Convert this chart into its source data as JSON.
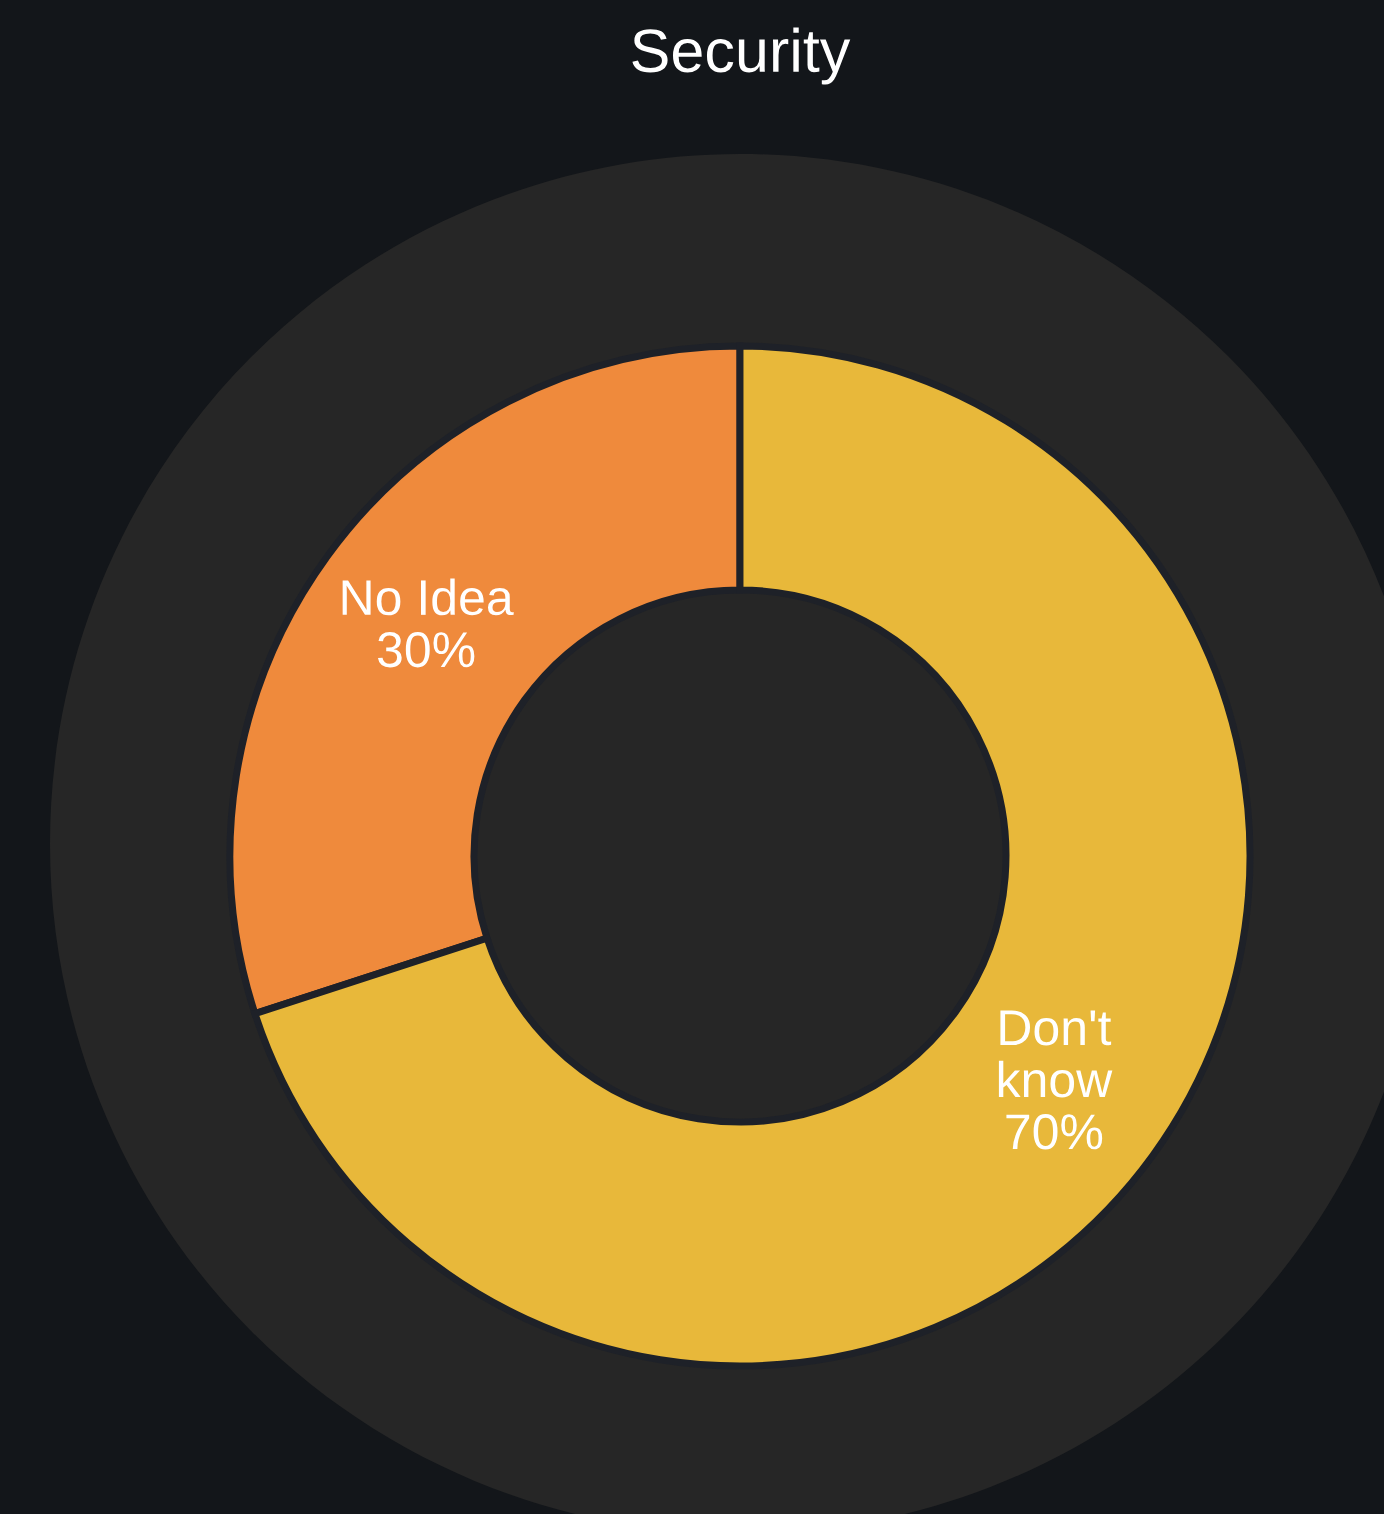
{
  "chart_data": {
    "type": "donut",
    "title": "Security",
    "categories": [
      "No Idea",
      "Don't know"
    ],
    "values": [
      30,
      70
    ],
    "value_labels": [
      "30%",
      "70%"
    ],
    "colors": [
      "#ef8a3c",
      "#e8b83a"
    ]
  }
}
